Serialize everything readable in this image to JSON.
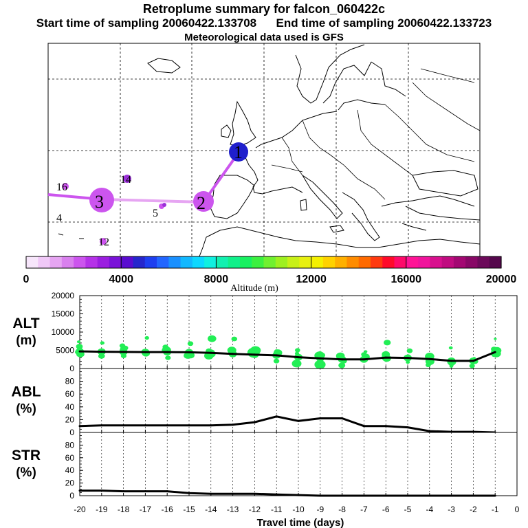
{
  "header": {
    "title": "Retroplume summary for falcon_060422c",
    "start_label": "Start time of sampling 20060422.133708",
    "end_label": "End time of sampling 20060422.133723",
    "met_label": "Meteorological data used is GFS"
  },
  "map": {
    "trajectory_color": "#cc55ee",
    "clusters": [
      {
        "label": "1",
        "color": "#1f1fcc"
      },
      {
        "label": "2",
        "color": "#cc55ee"
      },
      {
        "label": "3",
        "color": "#cc55ee"
      },
      {
        "label": "4",
        "color": "#ffffff"
      },
      {
        "label": "5",
        "color": "#cc55ee"
      },
      {
        "label": "12",
        "color": "#cc55ee"
      },
      {
        "label": "14",
        "color": "#9b30d9"
      },
      {
        "label": "16",
        "color": "#cc55ee"
      }
    ]
  },
  "colorbar": {
    "colors": [
      "#f7e6fb",
      "#f0c8f7",
      "#e6a5f2",
      "#d980ee",
      "#cc55ee",
      "#b532e8",
      "#9b1ee0",
      "#7a12d8",
      "#5a0cd0",
      "#2626cc",
      "#1e3ff0",
      "#2266ff",
      "#1a90ff",
      "#12b8ff",
      "#0dd8ff",
      "#10f0e0",
      "#12f0b0",
      "#10f08a",
      "#18f060",
      "#3cf040",
      "#70f030",
      "#9ef020",
      "#c8f018",
      "#e8f010",
      "#f5f000",
      "#ffd200",
      "#ffb000",
      "#ff8c00",
      "#ff6a00",
      "#ff3a10",
      "#ff0a2a",
      "#ff0a6a",
      "#ff1496",
      "#f0149c",
      "#d8108e",
      "#c00c80",
      "#a30872",
      "#880866",
      "#6c0a5a",
      "#55084c"
    ],
    "ticks": [
      "0",
      "4000",
      "8000",
      "12000",
      "16000",
      "20000"
    ],
    "label": "Altitude (m)"
  },
  "chart_data": [
    {
      "type": "line",
      "name": "ALT",
      "ylabel": "ALT (m)",
      "x": [
        -20,
        -19,
        -18,
        -17,
        -16,
        -15,
        -14,
        -13,
        -12,
        -11,
        -10,
        -9,
        -8,
        -7,
        -6,
        -5,
        -4,
        -3,
        -2,
        -1
      ],
      "values": [
        4700,
        4600,
        4550,
        4500,
        4500,
        4450,
        4300,
        4000,
        3800,
        3600,
        3100,
        2800,
        2500,
        2500,
        3000,
        2900,
        2600,
        2100,
        2100,
        4500
      ],
      "ylim": [
        0,
        20000
      ],
      "yticks": [
        "0",
        "5000",
        "10000",
        "15000",
        "20000"
      ],
      "marker_color": "#22ee55"
    },
    {
      "type": "line",
      "name": "ABL",
      "ylabel": "ABL (%)",
      "x": [
        -20,
        -19,
        -18,
        -17,
        -16,
        -15,
        -14,
        -13,
        -12,
        -11,
        -10,
        -9,
        -8,
        -7,
        -6,
        -5,
        -4,
        -3,
        -2,
        -1
      ],
      "values": [
        10,
        11,
        11,
        11,
        11,
        11,
        11,
        12,
        16,
        25,
        18,
        22,
        22,
        10,
        10,
        8,
        2,
        1,
        1,
        0
      ],
      "ylim": [
        0,
        100
      ],
      "yticks": [
        "0",
        "20",
        "40",
        "60",
        "80"
      ]
    },
    {
      "type": "line",
      "name": "STR",
      "ylabel": "STR (%)",
      "x": [
        -20,
        -19,
        -18,
        -17,
        -16,
        -15,
        -14,
        -13,
        -12,
        -11,
        -10,
        -9,
        -8,
        -7,
        -6,
        -5,
        -4,
        -3,
        -2,
        -1
      ],
      "values": [
        8,
        8,
        7,
        7,
        7,
        4,
        3,
        3,
        3,
        2,
        1,
        0,
        0,
        0,
        0,
        0,
        0,
        0,
        0,
        0
      ],
      "ylim": [
        0,
        100
      ],
      "yticks": [
        "0",
        "20",
        "40",
        "60",
        "80"
      ]
    }
  ],
  "xaxis": {
    "ticks": [
      "-20",
      "-19",
      "-18",
      "-17",
      "-16",
      "-15",
      "-14",
      "-13",
      "-12",
      "-11",
      "-10",
      "-9",
      "-8",
      "-7",
      "-6",
      "-5",
      "-4",
      "-3",
      "-2",
      "-1",
      "0"
    ],
    "label": "Travel time (days)"
  }
}
